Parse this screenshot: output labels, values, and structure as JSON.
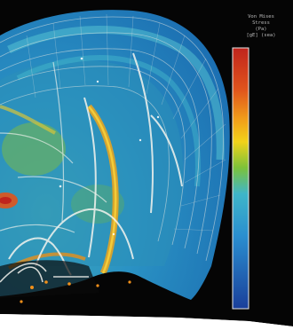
{
  "figure": {
    "kind": "false-color finite-element stress plot of a skull cross-section, printed page crop",
    "colors": {
      "background": "#050505",
      "cool": "#0f5ba8",
      "mid": "#3fb6c9",
      "warm": "#f2c21a",
      "hot": "#c0241d",
      "mesh_lines": "#e9e9e2",
      "page": "#ffffff"
    }
  },
  "scale": {
    "title_lines": [
      "Von Mises",
      "Stress",
      "(Pa)",
      "[gE] (sea)"
    ],
    "tick_labels": []
  }
}
